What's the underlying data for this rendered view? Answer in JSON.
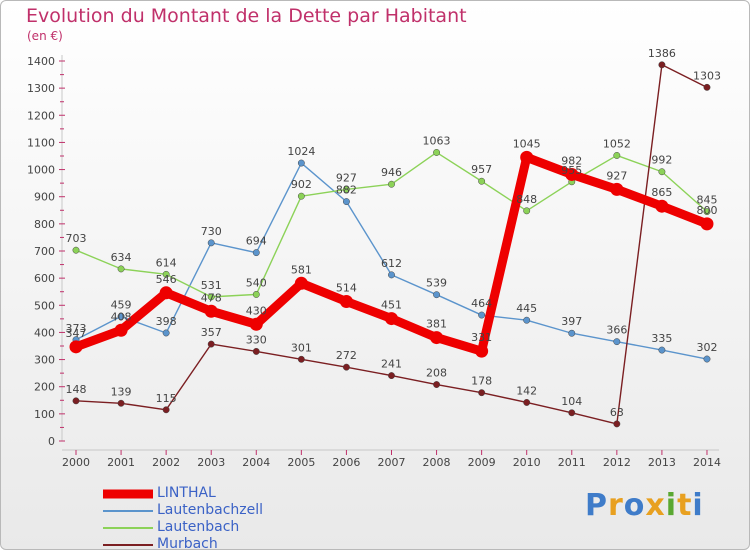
{
  "title": "Evolution du Montant de la Dette par Habitant",
  "unit": "(en €)",
  "logo": {
    "text": "Proxiti",
    "colors": [
      "#3f7cc9",
      "#e8a020",
      "#3f7cc9",
      "#e8a020",
      "#5aa832",
      "#e8a020",
      "#3f7cc9"
    ]
  },
  "chart_data": {
    "type": "line",
    "title": "Evolution du Montant de la Dette par Habitant",
    "ylabel": "(en €)",
    "xlabel": "",
    "categories": [
      "2000",
      "2001",
      "2002",
      "2003",
      "2004",
      "2005",
      "2006",
      "2007",
      "2008",
      "2009",
      "2010",
      "2011",
      "2012",
      "2013",
      "2014"
    ],
    "ylim": [
      0,
      1400
    ],
    "yticks": [
      0,
      100,
      200,
      300,
      400,
      500,
      600,
      700,
      800,
      900,
      1000,
      1100,
      1200,
      1300,
      1400
    ],
    "grid": false,
    "legend_position": "bottom-left",
    "series": [
      {
        "name": "LINTHAL",
        "color": "#ee0000",
        "emphasis": true,
        "values": [
          347,
          408,
          546,
          478,
          430,
          581,
          514,
          451,
          381,
          331,
          1045,
          982,
          927,
          865,
          800
        ]
      },
      {
        "name": "Lautenbachzell",
        "color": "#5b94cc",
        "emphasis": false,
        "values": [
          373,
          459,
          398,
          730,
          694,
          1024,
          882,
          612,
          539,
          464,
          445,
          397,
          366,
          335,
          302
        ]
      },
      {
        "name": "Lautenbach",
        "color": "#8cd258",
        "emphasis": false,
        "values": [
          703,
          634,
          614,
          531,
          540,
          902,
          927,
          946,
          1063,
          957,
          848,
          955,
          1052,
          992,
          845
        ]
      },
      {
        "name": "Murbach",
        "color": "#7b1f22",
        "emphasis": false,
        "values": [
          148,
          139,
          115,
          357,
          330,
          301,
          272,
          241,
          208,
          178,
          142,
          104,
          63,
          1386,
          1303
        ]
      }
    ]
  }
}
